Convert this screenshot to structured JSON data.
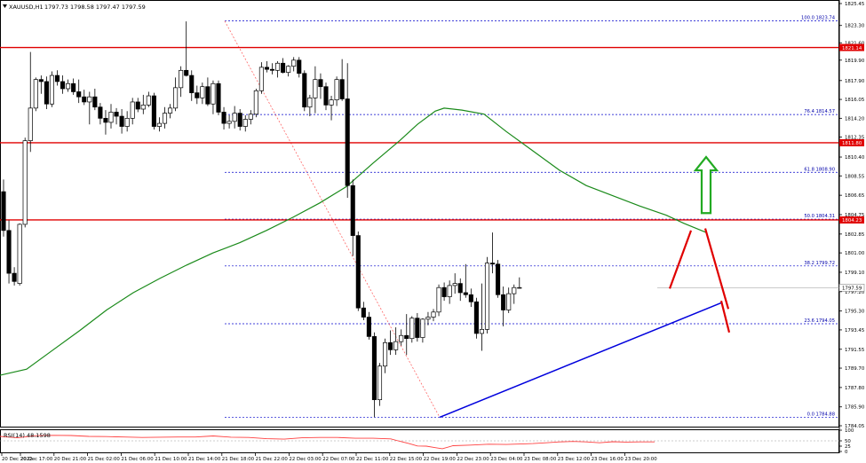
{
  "header": {
    "symbol": "XAUUSD,H1",
    "ohlc": "1797.73 1798.58 1797.47 1797.59"
  },
  "rsi_header": "RSI(14) 48.1598",
  "colors": {
    "bull_candle": "#ffffff",
    "bear_candle": "#000000",
    "ma_line": "#1a8a1a",
    "sr_lines": "#e00000",
    "fib_lines": "#0000cc",
    "fib_diagonal": "#ff6666",
    "trendline": "#0000dd",
    "rsi_line": "#ff4040",
    "arrow_up": "#22aa22",
    "projection": "#e00000",
    "price_tag_bg": "#e00000"
  },
  "chart_data": [
    {
      "type": "candlestick",
      "title": "XAUUSD,H1",
      "x_labels": [
        "20 Dec 2022",
        "20 Dec 17:00",
        "20 Dec 21:00",
        "21 Dec 02:00",
        "21 Dec 06:00",
        "21 Dec 10:00",
        "21 Dec 14:00",
        "21 Dec 18:00",
        "21 Dec 22:00",
        "22 Dec 03:00",
        "22 Dec 07:00",
        "22 Dec 11:00",
        "22 Dec 15:00",
        "22 Dec 19:00",
        "22 Dec 23:00",
        "23 Dec 04:00",
        "23 Dec 08:00",
        "23 Dec 12:00",
        "23 Dec 16:00",
        "23 Dec 20:00"
      ],
      "y_ticks": [
        "1825.45",
        "1823.30",
        "1821.60",
        "1819.90",
        "1817.90",
        "1816.05",
        "1814.20",
        "1812.35",
        "1810.40",
        "1808.55",
        "1806.65",
        "1804.75",
        "1802.85",
        "1801.00",
        "1799.10",
        "1797.20",
        "1795.30",
        "1793.45",
        "1791.55",
        "1789.70",
        "1787.80",
        "1785.90",
        "1784.05"
      ],
      "ylim": [
        1784.05,
        1825.45
      ],
      "candles": [
        [
          1807.0,
          1808.2,
          1802.6,
          1803.2
        ],
        [
          1803.2,
          1804.2,
          1798.0,
          1799.0
        ],
        [
          1799.0,
          1799.6,
          1797.8,
          1798.2
        ],
        [
          1798.0,
          1803.9,
          1797.8,
          1803.8
        ],
        [
          1803.8,
          1812.3,
          1803.5,
          1812.0
        ],
        [
          1812.0,
          1820.7,
          1810.9,
          1815.2
        ],
        [
          1815.2,
          1818.2,
          1814.9,
          1818.0
        ],
        [
          1818.0,
          1818.4,
          1816.6,
          1817.8
        ],
        [
          1817.8,
          1818.3,
          1815.1,
          1815.6
        ],
        [
          1815.6,
          1818.8,
          1815.3,
          1818.4
        ],
        [
          1818.4,
          1818.9,
          1817.4,
          1817.8
        ],
        [
          1817.8,
          1818.4,
          1816.6,
          1817.1
        ],
        [
          1817.1,
          1818.0,
          1816.8,
          1817.6
        ],
        [
          1817.6,
          1818.1,
          1816.5,
          1816.8
        ],
        [
          1816.8,
          1818.0,
          1815.7,
          1816.3
        ],
        [
          1816.3,
          1817.0,
          1815.5,
          1815.8
        ],
        [
          1815.8,
          1816.8,
          1813.6,
          1816.3
        ],
        [
          1816.3,
          1817.1,
          1815.0,
          1815.3
        ],
        [
          1815.3,
          1815.7,
          1813.6,
          1814.2
        ],
        [
          1814.2,
          1815.0,
          1812.6,
          1813.8
        ],
        [
          1813.8,
          1815.6,
          1813.2,
          1814.8
        ],
        [
          1814.8,
          1815.2,
          1813.6,
          1814.4
        ],
        [
          1814.4,
          1815.1,
          1812.7,
          1813.4
        ],
        [
          1813.4,
          1814.9,
          1812.9,
          1814.2
        ],
        [
          1814.2,
          1816.2,
          1813.6,
          1815.8
        ],
        [
          1815.8,
          1816.2,
          1814.8,
          1815.1
        ],
        [
          1815.1,
          1816.5,
          1814.6,
          1815.5
        ],
        [
          1815.5,
          1816.8,
          1815.3,
          1816.4
        ],
        [
          1816.4,
          1816.7,
          1813.1,
          1813.4
        ],
        [
          1813.4,
          1814.3,
          1812.9,
          1813.7
        ],
        [
          1813.7,
          1815.3,
          1813.2,
          1814.7
        ],
        [
          1814.7,
          1815.6,
          1814.2,
          1815.2
        ],
        [
          1815.2,
          1818.2,
          1814.9,
          1817.2
        ],
        [
          1817.2,
          1819.3,
          1816.3,
          1818.9
        ],
        [
          1818.9,
          1823.7,
          1818.3,
          1818.4
        ],
        [
          1818.4,
          1818.9,
          1815.9,
          1816.7
        ],
        [
          1816.7,
          1817.4,
          1815.6,
          1816.2
        ],
        [
          1816.2,
          1817.7,
          1815.6,
          1817.3
        ],
        [
          1817.3,
          1818.2,
          1815.4,
          1815.6
        ],
        [
          1815.6,
          1817.9,
          1814.6,
          1817.6
        ],
        [
          1817.6,
          1817.9,
          1814.5,
          1814.8
        ],
        [
          1814.8,
          1815.3,
          1813.1,
          1813.7
        ],
        [
          1813.7,
          1814.5,
          1813.2,
          1813.9
        ],
        [
          1813.9,
          1815.4,
          1813.2,
          1814.7
        ],
        [
          1814.7,
          1815.1,
          1813.0,
          1813.4
        ],
        [
          1813.4,
          1814.5,
          1812.9,
          1814.1
        ],
        [
          1814.1,
          1815.0,
          1813.6,
          1814.6
        ],
        [
          1814.6,
          1817.1,
          1814.3,
          1816.9
        ],
        [
          1816.9,
          1819.7,
          1816.6,
          1819.2
        ],
        [
          1819.2,
          1819.8,
          1818.7,
          1819.0
        ],
        [
          1819.0,
          1819.6,
          1818.5,
          1818.9
        ],
        [
          1818.9,
          1819.8,
          1818.2,
          1819.6
        ],
        [
          1819.6,
          1820.1,
          1818.6,
          1818.7
        ],
        [
          1818.7,
          1819.4,
          1818.3,
          1819.3
        ],
        [
          1819.3,
          1820.2,
          1818.8,
          1819.9
        ],
        [
          1819.9,
          1820.2,
          1818.2,
          1818.6
        ],
        [
          1818.6,
          1818.9,
          1814.9,
          1815.3
        ],
        [
          1815.3,
          1816.5,
          1814.4,
          1816.2
        ],
        [
          1816.2,
          1819.3,
          1814.7,
          1818.0
        ],
        [
          1818.0,
          1818.6,
          1816.1,
          1817.3
        ],
        [
          1817.3,
          1817.7,
          1815.0,
          1815.5
        ],
        [
          1815.5,
          1816.4,
          1814.0,
          1816.0
        ],
        [
          1816.0,
          1818.3,
          1815.4,
          1818.0
        ],
        [
          1818.0,
          1820.0,
          1815.9,
          1816.1
        ],
        [
          1816.1,
          1819.6,
          1806.4,
          1807.6
        ],
        [
          1807.6,
          1808.2,
          1800.7,
          1802.7
        ],
        [
          1802.7,
          1803.1,
          1795.3,
          1795.6
        ],
        [
          1795.6,
          1796.2,
          1794.4,
          1794.7
        ],
        [
          1794.7,
          1795.2,
          1792.5,
          1792.8
        ],
        [
          1792.8,
          1793.2,
          1784.9,
          1786.6
        ],
        [
          1786.6,
          1790.2,
          1786.0,
          1789.9
        ],
        [
          1789.9,
          1792.6,
          1789.2,
          1792.2
        ],
        [
          1792.2,
          1793.4,
          1791.0,
          1791.5
        ],
        [
          1791.5,
          1793.7,
          1791.0,
          1792.3
        ],
        [
          1792.3,
          1793.5,
          1791.9,
          1792.9
        ],
        [
          1792.9,
          1795.0,
          1791.0,
          1792.6
        ],
        [
          1792.6,
          1794.8,
          1792.2,
          1794.6
        ],
        [
          1794.6,
          1795.1,
          1792.3,
          1792.7
        ],
        [
          1792.7,
          1794.6,
          1792.2,
          1794.5
        ],
        [
          1794.5,
          1795.2,
          1793.9,
          1794.7
        ],
        [
          1794.7,
          1795.5,
          1794.3,
          1795.2
        ],
        [
          1795.2,
          1797.9,
          1794.8,
          1797.6
        ],
        [
          1797.6,
          1798.1,
          1796.3,
          1796.7
        ],
        [
          1796.7,
          1798.3,
          1796.0,
          1797.8
        ],
        [
          1797.8,
          1799.0,
          1797.0,
          1798.0
        ],
        [
          1798.0,
          1798.5,
          1796.3,
          1797.1
        ],
        [
          1797.1,
          1799.9,
          1796.6,
          1796.9
        ],
        [
          1796.9,
          1797.5,
          1795.7,
          1796.2
        ],
        [
          1796.2,
          1796.6,
          1792.6,
          1793.1
        ],
        [
          1793.1,
          1798.0,
          1791.4,
          1793.5
        ],
        [
          1793.5,
          1800.6,
          1793.1,
          1800.0
        ],
        [
          1800.0,
          1803.0,
          1799.0,
          1799.9
        ],
        [
          1799.9,
          1800.3,
          1796.6,
          1796.9
        ],
        [
          1796.9,
          1797.7,
          1793.8,
          1795.4
        ],
        [
          1795.4,
          1797.6,
          1795.1,
          1797.0
        ],
        [
          1797.0,
          1797.9,
          1796.0,
          1797.6
        ],
        [
          1797.6,
          1798.6,
          1797.5,
          1797.6
        ]
      ],
      "candle_x_first": 4,
      "candle_x_step": 6.05,
      "moving_average": [
        [
          0,
          1789.0
        ],
        [
          30,
          1789.6
        ],
        [
          60,
          1791.5
        ],
        [
          90,
          1793.4
        ],
        [
          120,
          1795.4
        ],
        [
          150,
          1797.1
        ],
        [
          180,
          1798.5
        ],
        [
          210,
          1799.8
        ],
        [
          240,
          1801.0
        ],
        [
          270,
          1802.0
        ],
        [
          300,
          1803.2
        ],
        [
          330,
          1804.5
        ],
        [
          360,
          1805.9
        ],
        [
          390,
          1807.5
        ],
        [
          420,
          1809.8
        ],
        [
          450,
          1812.0
        ],
        [
          470,
          1813.6
        ],
        [
          490,
          1814.9
        ],
        [
          500,
          1815.2
        ],
        [
          520,
          1815.0
        ],
        [
          545,
          1814.6
        ],
        [
          570,
          1812.9
        ],
        [
          600,
          1811.0
        ],
        [
          630,
          1809.1
        ],
        [
          660,
          1807.6
        ],
        [
          690,
          1806.6
        ],
        [
          720,
          1805.6
        ],
        [
          750,
          1804.7
        ],
        [
          770,
          1803.9
        ],
        [
          795,
          1803.0
        ]
      ],
      "horizontal_levels": [
        {
          "price": 1821.14,
          "label": "1821.14"
        },
        {
          "price": 1811.8,
          "label": "1811.80"
        },
        {
          "price": 1804.23,
          "label": "1804.23"
        }
      ],
      "current_price": {
        "price": 1797.59,
        "label": "1797.59"
      },
      "fibonacci": {
        "x_start": 253,
        "x_end": 945,
        "levels": [
          {
            "price": 1823.74,
            "label": "100.0 1823.74"
          },
          {
            "price": 1814.57,
            "label": "76.4 1814.57"
          },
          {
            "price": 1808.9,
            "label": "61.8 1808.90"
          },
          {
            "price": 1804.31,
            "label": "50.0 1804.31"
          },
          {
            "price": 1799.72,
            "label": "38.2 1799.72"
          },
          {
            "price": 1794.05,
            "label": "23.6 1794.05"
          },
          {
            "price": 1784.88,
            "label": "0.0 1784.88"
          }
        ]
      },
      "fib_swing": {
        "from": [
          253,
          1823.74
        ],
        "to": [
          495,
          1784.88
        ]
      },
      "support_trendline": {
        "from": [
          495,
          1784.88
        ],
        "to": [
          812,
          1796.1
        ]
      },
      "projection_lines": [
        {
          "from": [
            754,
            1797.5
          ],
          "to": [
            778,
            1803.2
          ]
        },
        {
          "from": [
            794,
            1803.4
          ],
          "to": [
            820,
            1795.5
          ]
        },
        {
          "from": [
            812,
            1796.3
          ],
          "to": [
            821,
            1793.2
          ]
        }
      ],
      "up_arrow": {
        "x": 795,
        "price_base": 1804.9,
        "price_tip": 1810.4
      }
    },
    {
      "type": "line",
      "title": "RSI(14) 48.1598",
      "y_ticks": [
        "100",
        "50",
        "25",
        "0"
      ],
      "ylim": [
        0,
        100
      ],
      "values": [
        [
          0,
          71
        ],
        [
          20,
          64
        ],
        [
          40,
          74
        ],
        [
          60,
          76
        ],
        [
          80,
          75
        ],
        [
          100,
          71
        ],
        [
          120,
          70
        ],
        [
          140,
          68
        ],
        [
          160,
          66
        ],
        [
          180,
          67
        ],
        [
          200,
          68
        ],
        [
          220,
          68
        ],
        [
          240,
          73
        ],
        [
          260,
          67
        ],
        [
          280,
          66
        ],
        [
          300,
          60
        ],
        [
          320,
          58
        ],
        [
          340,
          64
        ],
        [
          360,
          66
        ],
        [
          380,
          66
        ],
        [
          400,
          62
        ],
        [
          420,
          62
        ],
        [
          440,
          59
        ],
        [
          450,
          48
        ],
        [
          460,
          38
        ],
        [
          470,
          26
        ],
        [
          480,
          25
        ],
        [
          490,
          18
        ],
        [
          498,
          13
        ],
        [
          510,
          27
        ],
        [
          530,
          30
        ],
        [
          550,
          34
        ],
        [
          570,
          33
        ],
        [
          590,
          36
        ],
        [
          600,
          37
        ],
        [
          615,
          41
        ],
        [
          630,
          45
        ],
        [
          645,
          47
        ],
        [
          660,
          45
        ],
        [
          675,
          41
        ],
        [
          690,
          46
        ],
        [
          705,
          44
        ],
        [
          720,
          45
        ],
        [
          737,
          45
        ]
      ]
    }
  ]
}
